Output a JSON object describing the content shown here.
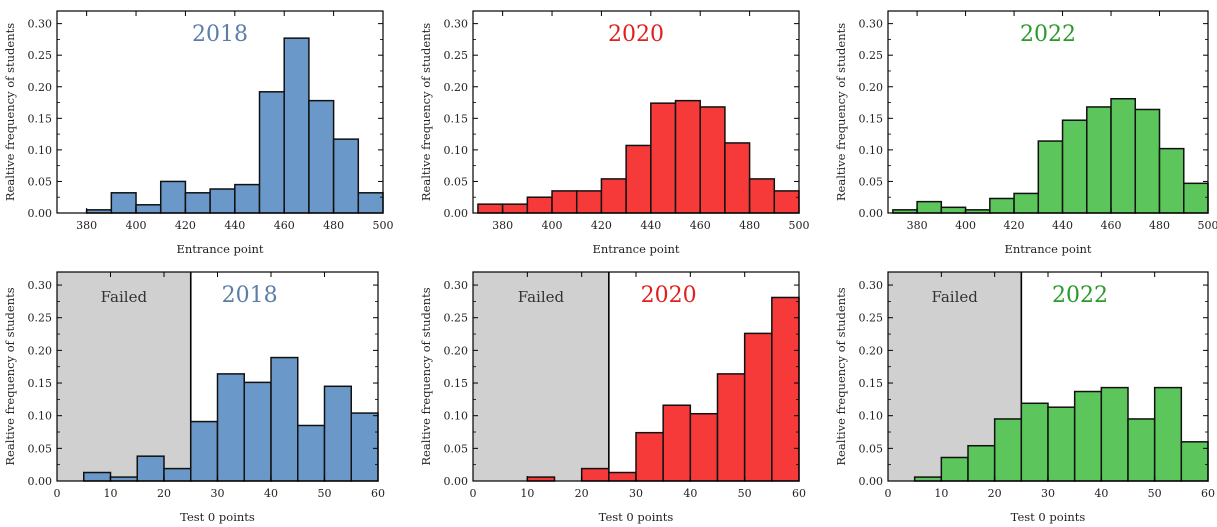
{
  "colors": {
    "2018": "#6a98c8",
    "2020": "#f63a3a",
    "2022": "#5cc55c",
    "title_2018": "#5b7ea8",
    "title_2020": "#e02020",
    "title_2022": "#2a9a2a",
    "failed_region": "#d0d0d0"
  },
  "chart_data": [
    {
      "type": "bar",
      "title": "2018",
      "xlabel": "Entrance point",
      "ylabel": "Realtive frequency of students",
      "xlim": [
        368,
        500
      ],
      "ylim": [
        0,
        0.32
      ],
      "xticks": [
        "380",
        "400",
        "420",
        "440",
        "460",
        "480",
        "500"
      ],
      "yticks": [
        "0.00",
        "0.05",
        "0.10",
        "0.15",
        "0.20",
        "0.25",
        "0.30"
      ],
      "bin_edges": [
        380,
        390,
        400,
        410,
        420,
        430,
        440,
        450,
        460,
        470,
        480,
        490,
        500
      ],
      "values": [
        0.005,
        0.032,
        0.013,
        0.05,
        0.032,
        0.038,
        0.045,
        0.192,
        0.277,
        0.178,
        0.117,
        0.032
      ]
    },
    {
      "type": "bar",
      "title": "2020",
      "xlabel": "Entrance point",
      "ylabel": "Realtive frequency of students",
      "xlim": [
        368,
        500
      ],
      "ylim": [
        0,
        0.32
      ],
      "xticks": [
        "380",
        "400",
        "420",
        "440",
        "460",
        "480",
        "500"
      ],
      "yticks": [
        "0.00",
        "0.05",
        "0.10",
        "0.15",
        "0.20",
        "0.25",
        "0.30"
      ],
      "bin_edges": [
        370,
        380,
        390,
        400,
        410,
        420,
        430,
        440,
        450,
        460,
        470,
        480,
        490,
        500
      ],
      "values": [
        0.014,
        0.014,
        0.025,
        0.035,
        0.035,
        0.054,
        0.107,
        0.174,
        0.178,
        0.168,
        0.111,
        0.054,
        0.035
      ]
    },
    {
      "type": "bar",
      "title": "2022",
      "xlabel": "Entrance point",
      "ylabel": "Realtive frequency of students",
      "xlim": [
        368,
        500
      ],
      "ylim": [
        0,
        0.32
      ],
      "xticks": [
        "380",
        "400",
        "420",
        "440",
        "460",
        "480",
        "500"
      ],
      "yticks": [
        "0.00",
        "0.05",
        "0.10",
        "0.15",
        "0.20",
        "0.25",
        "0.30"
      ],
      "bin_edges": [
        370,
        380,
        390,
        400,
        410,
        420,
        430,
        440,
        450,
        460,
        470,
        480,
        490,
        500
      ],
      "values": [
        0.005,
        0.018,
        0.009,
        0.005,
        0.023,
        0.031,
        0.114,
        0.147,
        0.168,
        0.181,
        0.164,
        0.102,
        0.047
      ]
    },
    {
      "type": "bar",
      "title": "2018",
      "region_label": "Failed",
      "region_x": [
        0,
        25
      ],
      "xlabel": "Test 0 points",
      "ylabel": "Realtive frequency of students",
      "xlim": [
        0,
        60
      ],
      "ylim": [
        0,
        0.32
      ],
      "xticks": [
        "0",
        "10",
        "20",
        "30",
        "40",
        "50",
        "60"
      ],
      "yticks": [
        "0.00",
        "0.05",
        "0.10",
        "0.15",
        "0.20",
        "0.25",
        "0.30"
      ],
      "bin_edges": [
        5,
        10,
        15,
        20,
        25,
        30,
        35,
        40,
        45,
        50,
        55,
        60
      ],
      "values": [
        0.013,
        0.006,
        0.038,
        0.019,
        0.091,
        0.164,
        0.151,
        0.189,
        0.085,
        0.145,
        0.104
      ]
    },
    {
      "type": "bar",
      "title": "2020",
      "region_label": "Failed",
      "region_x": [
        0,
        25
      ],
      "xlabel": "Test 0 points",
      "ylabel": "Realtive frequency of students",
      "xlim": [
        0,
        60
      ],
      "ylim": [
        0,
        0.32
      ],
      "xticks": [
        "0",
        "10",
        "20",
        "30",
        "40",
        "50",
        "60"
      ],
      "yticks": [
        "0.00",
        "0.05",
        "0.10",
        "0.15",
        "0.20",
        "0.25",
        "0.30"
      ],
      "bin_edges": [
        10,
        15,
        20,
        25,
        30,
        35,
        40,
        45,
        50,
        55,
        60
      ],
      "values": [
        0.006,
        0.0,
        0.019,
        0.013,
        0.074,
        0.116,
        0.103,
        0.164,
        0.226,
        0.281
      ]
    },
    {
      "type": "bar",
      "title": "2022",
      "region_label": "Failed",
      "region_x": [
        0,
        25
      ],
      "xlabel": "Test 0 points",
      "ylabel": "Realtive frequency of students",
      "xlim": [
        0,
        60
      ],
      "ylim": [
        0,
        0.32
      ],
      "xticks": [
        "0",
        "10",
        "20",
        "30",
        "40",
        "50",
        "60"
      ],
      "yticks": [
        "0.00",
        "0.05",
        "0.10",
        "0.15",
        "0.20",
        "0.25",
        "0.30"
      ],
      "bin_edges": [
        5,
        10,
        15,
        20,
        25,
        30,
        35,
        40,
        45,
        50,
        55,
        60
      ],
      "values": [
        0.006,
        0.036,
        0.054,
        0.095,
        0.119,
        0.113,
        0.137,
        0.143,
        0.095,
        0.143,
        0.06
      ]
    }
  ]
}
